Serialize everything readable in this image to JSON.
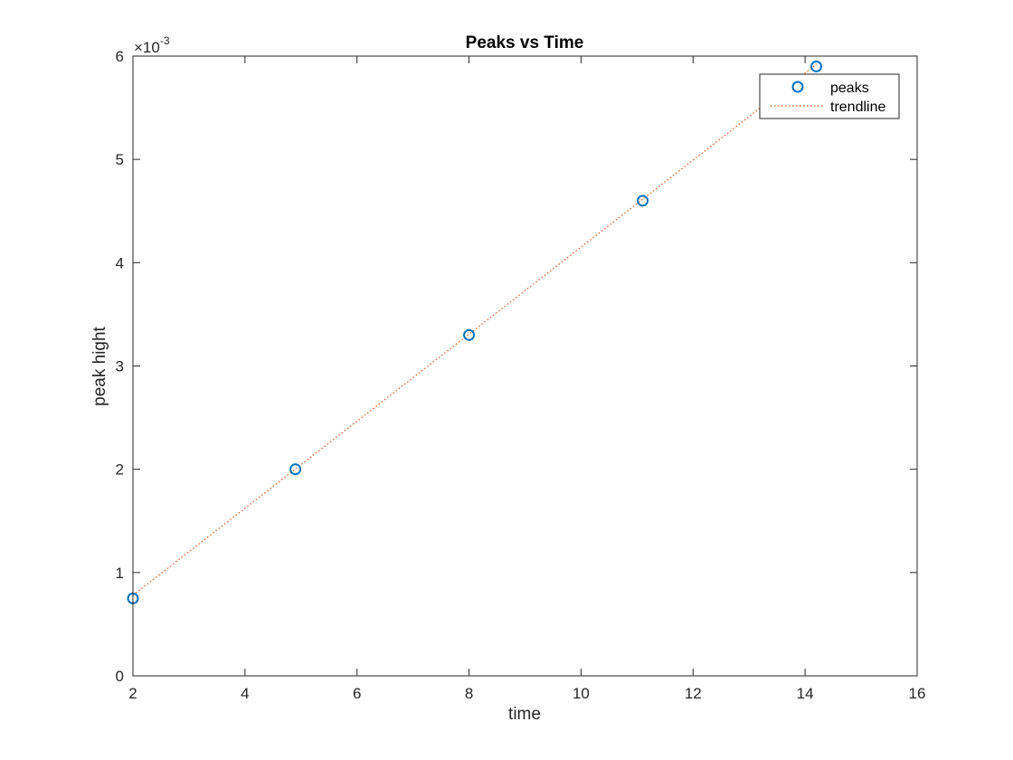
{
  "chart_data": {
    "type": "scatter",
    "title": "Peaks vs Time",
    "xlabel": "time",
    "ylabel": "peak hight",
    "xlim": [
      2,
      16
    ],
    "ylim": [
      0,
      6
    ],
    "x_ticks": [
      2,
      4,
      6,
      8,
      10,
      12,
      14,
      16
    ],
    "y_ticks": [
      0,
      1,
      2,
      3,
      4,
      5,
      6
    ],
    "y_exponent": {
      "base": "×10",
      "power": "-3"
    },
    "grid": false,
    "legend_position": "top-right",
    "series": [
      {
        "name": "peaks",
        "style": "markers",
        "marker": "circle",
        "color": "#0072BD",
        "x": [
          2.0,
          4.9,
          8.0,
          11.1,
          14.2
        ],
        "y": [
          0.75,
          2.0,
          3.3,
          4.6,
          5.9
        ]
      },
      {
        "name": "trendline",
        "style": "dotted-line",
        "color": "#D95319",
        "x": [
          2.0,
          14.2
        ],
        "y": [
          0.78,
          5.92
        ]
      }
    ]
  }
}
